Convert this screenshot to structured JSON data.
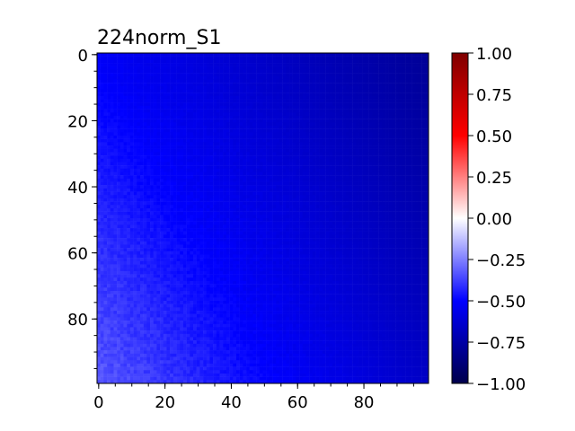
{
  "chart_data": {
    "type": "heatmap",
    "title": "224norm_S1",
    "xlabel": "",
    "ylabel": "",
    "grid": false,
    "rows": 100,
    "cols": 100,
    "x_ticks": [
      "0",
      "20",
      "40",
      "60",
      "80"
    ],
    "y_ticks": [
      "0",
      "20",
      "40",
      "60",
      "80"
    ],
    "value_pattern": {
      "description_of_values": "values approximately range from -0.3 (bottom-left corner) to -0.8 (top-right corner)",
      "corner_values": {
        "top_left": -0.52,
        "top_right": -0.79,
        "bottom_left": -0.33,
        "bottom_right": -0.66
      }
    },
    "colormap": "seismic",
    "colormap_stops": [
      "#00004c",
      "#0000ff",
      "#ffffff",
      "#ff0000",
      "#7f0000"
    ],
    "colorbar": {
      "range": [
        -1.0,
        1.0
      ],
      "ticks": [
        "1.00",
        "0.75",
        "0.50",
        "0.25",
        "0.00",
        "−0.25",
        "−0.50",
        "−0.75",
        "−1.00"
      ]
    }
  }
}
